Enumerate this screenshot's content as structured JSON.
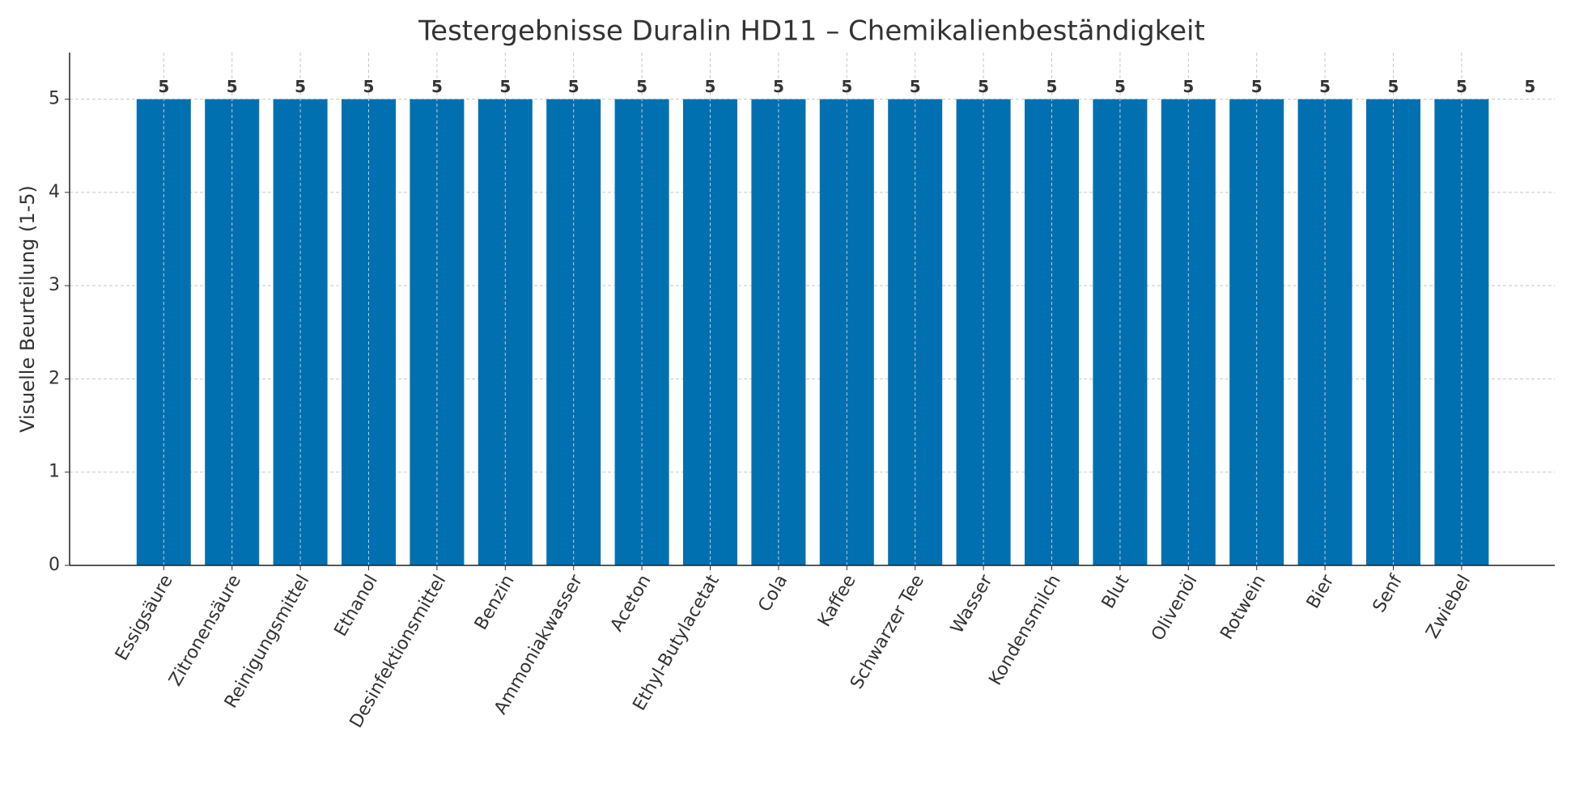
{
  "chart_data": {
    "type": "bar",
    "title": "Testergebnisse Duralin HD11 – Chemikalienbeständigkeit",
    "y_label": "Visuelle Beurteilung (1-5)",
    "categories": [
      "Essigsäure",
      "Zitronensäure",
      "Reinigungsmittel",
      "Ethanol",
      "Desinfektionsmittel",
      "Benzin",
      "Ammoniakwasser",
      "Aceton",
      "Ethyl-Butylacetat",
      "Cola",
      "Kaffee",
      "Schwarzer Tee",
      "Wasser",
      "Kondensmilch",
      "Blut",
      "Olivenöl",
      "Rotwein",
      "Bier",
      "Senf",
      "Zwiebel",
      null
    ],
    "values": [
      5,
      5,
      5,
      5,
      5,
      5,
      5,
      5,
      5,
      5,
      5,
      5,
      5,
      5,
      5,
      5,
      5,
      5,
      5,
      5,
      5
    ],
    "color": "#0070b0",
    "ylim": [
      0,
      5.5
    ],
    "yticks": [
      0,
      1,
      2,
      3,
      4,
      5
    ],
    "grid": true
  }
}
